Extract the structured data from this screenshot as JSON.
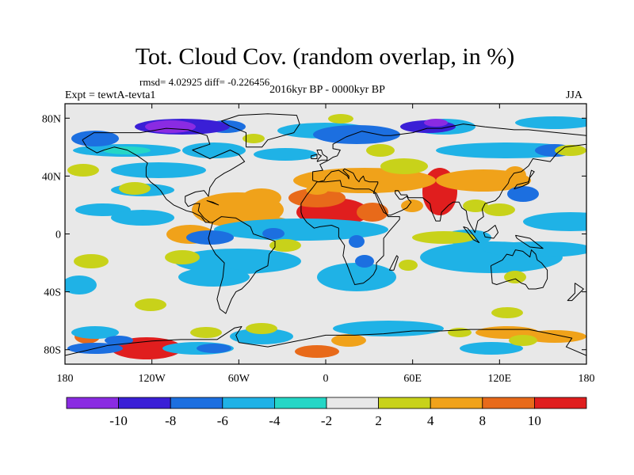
{
  "title": "Tot. Cloud Cov. (random overlap, in %)",
  "stats": "rmsd= 4.02925 diff= -0.226456",
  "period": "2016kyr BP - 0000kyr BP",
  "experiment": "Expt = tewtA-tevta1",
  "season": "JJA",
  "map": {
    "projection": "cylindrical equidistant",
    "lon_range": [
      -180,
      180
    ],
    "lat_range": [
      -90,
      90
    ],
    "background_color": "#e8e8e8",
    "lat_ticks": [
      {
        "value": 80,
        "label": "80N"
      },
      {
        "value": 40,
        "label": "40N"
      },
      {
        "value": 0,
        "label": "0"
      },
      {
        "value": -40,
        "label": "40S"
      },
      {
        "value": -80,
        "label": "80S"
      }
    ],
    "lon_ticks": [
      {
        "value": -180,
        "label": "180"
      },
      {
        "value": -120,
        "label": "120W"
      },
      {
        "value": -60,
        "label": "60W"
      },
      {
        "value": 0,
        "label": "0"
      },
      {
        "value": 60,
        "label": "60E"
      },
      {
        "value": 120,
        "label": "120E"
      },
      {
        "value": 180,
        "label": "180"
      }
    ]
  },
  "colorbar": {
    "colors": [
      "#8a2be2",
      "#3a1fd6",
      "#1c6fe0",
      "#1fb2e6",
      "#25d6c6",
      "#e8e8e8",
      "#c8d21a",
      "#f0a21a",
      "#e86a1a",
      "#e01e1e"
    ],
    "labels": [
      "-10",
      "-8",
      "-6",
      "-4",
      "-2",
      "2",
      "4",
      "8",
      "10"
    ]
  }
}
